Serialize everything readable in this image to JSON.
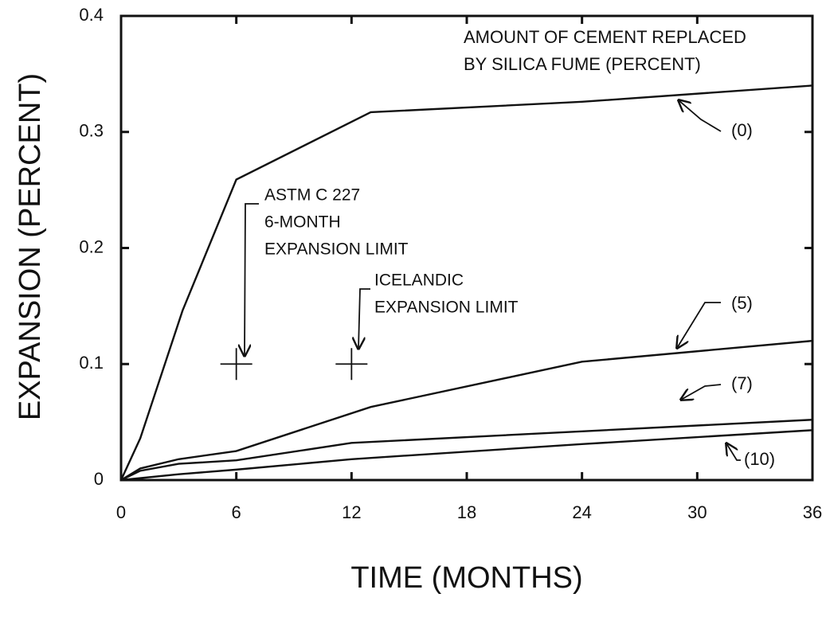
{
  "chart_data": {
    "type": "line",
    "xlabel": "TIME  (MONTHS)",
    "ylabel": "EXPANSION  (PERCENT)",
    "legend_title": [
      "AMOUNT OF  CEMENT REPLACED",
      "BY SILICA FUME (PERCENT)"
    ],
    "xlim": [
      0,
      36
    ],
    "xticks": [
      0,
      6,
      12,
      18,
      24,
      30,
      36
    ],
    "ylim": [
      0,
      0.4
    ],
    "yticks": [
      0,
      0.1,
      0.2,
      0.3,
      0.4
    ],
    "series": [
      {
        "name": "(0)",
        "color": "#111111",
        "x": [
          0,
          1,
          3.2,
          6,
          13,
          24,
          36
        ],
        "values": [
          0,
          0.036,
          0.146,
          0.259,
          0.317,
          0.326,
          0.34
        ]
      },
      {
        "name": "(5)",
        "color": "#111111",
        "x": [
          0,
          1,
          3,
          6,
          13,
          24,
          36
        ],
        "values": [
          0,
          0.01,
          0.018,
          0.025,
          0.063,
          0.102,
          0.12
        ]
      },
      {
        "name": "(7)",
        "color": "#111111",
        "x": [
          0,
          1,
          3,
          6,
          12,
          24,
          36
        ],
        "values": [
          0,
          0.008,
          0.014,
          0.017,
          0.032,
          0.042,
          0.052
        ]
      },
      {
        "name": "(10)",
        "color": "#111111",
        "x": [
          0,
          3,
          6,
          12,
          24,
          36
        ],
        "values": [
          0,
          0.005,
          0.009,
          0.018,
          0.031,
          0.043
        ]
      }
    ],
    "limits": [
      {
        "label": [
          "ASTM C 227",
          "6-MONTH",
          "EXPANSION LIMIT"
        ],
        "x": 6,
        "y": 0.1
      },
      {
        "label": [
          "ICELANDIC",
          "EXPANSION LIMIT"
        ],
        "x": 12,
        "y": 0.1
      }
    ]
  }
}
